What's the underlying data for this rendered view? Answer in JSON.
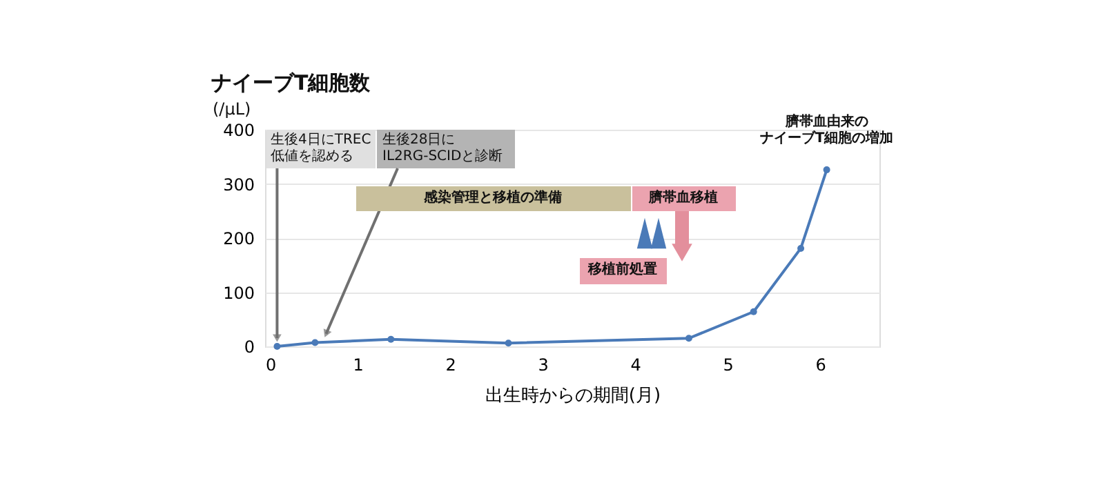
{
  "chart_data": {
    "type": "line",
    "title": "ナイーブT細胞数",
    "ylabel": "(/μL)",
    "xlabel": "出生時からの期間(月)",
    "x": [
      0.13,
      0.54,
      1.36,
      2.63,
      4.58,
      5.28,
      5.79,
      6.07
    ],
    "series": [
      {
        "color": "#4a7ab8",
        "values": [
          0,
          7,
          13,
          6,
          15,
          64,
          181,
          326
        ]
      }
    ],
    "xlim": [
      0,
      6.64
    ],
    "xticks": [
      0,
      1,
      2,
      3,
      4,
      5,
      6
    ],
    "ylim": [
      0,
      400
    ],
    "yticks": [
      0,
      100,
      200,
      300,
      400
    ],
    "grid": "y",
    "marker": "circle",
    "line_style": "solid",
    "annotations": [
      {
        "text": "生後4日にTREC低値を認める",
        "x": 0.13,
        "y": 0
      },
      {
        "text": "生後28日にIL2RG-SCIDと診断",
        "x": 0.66,
        "y": 8
      },
      "感染管理と移植の準備",
      "臍帯血移植",
      "移植前処置",
      {
        "text": "臍帯血由来のナイーブT細胞の増加",
        "x": 6.07,
        "y": 326
      }
    ]
  }
}
